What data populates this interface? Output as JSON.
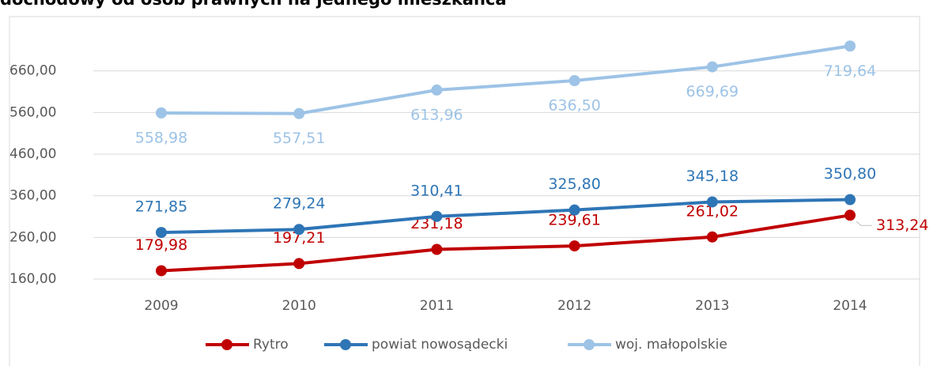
{
  "chart_data": {
    "type": "line",
    "title": "dochodowy od osób prawnych na jednego mieszkańca",
    "categories": [
      "2009",
      "2010",
      "2011",
      "2012",
      "2013",
      "2014"
    ],
    "series": [
      {
        "name": "Rytro",
        "color": "#c00000",
        "label_pos": "above",
        "values": [
          179.98,
          197.21,
          231.18,
          239.61,
          261.02,
          313.24
        ],
        "value_labels": [
          "179,98",
          "197,21",
          "231,18",
          "239,61",
          "261,02",
          "313,24"
        ]
      },
      {
        "name": "powiat nowosądecki",
        "color": "#2e75b6",
        "label_pos": "above",
        "values": [
          271.85,
          279.24,
          310.41,
          325.8,
          345.18,
          350.8
        ],
        "value_labels": [
          "271,85",
          "279,24",
          "310,41",
          "325,80",
          "345,18",
          "350,80"
        ]
      },
      {
        "name": "woj. małopolskie",
        "color": "#9dc3e6",
        "label_pos": "below",
        "values": [
          558.98,
          557.51,
          613.96,
          636.5,
          669.69,
          719.64
        ],
        "value_labels": [
          "558,98",
          "557,51",
          "613,96",
          "636,50",
          "669,69",
          "719,64"
        ]
      }
    ],
    "ylim": [
      160,
      760
    ],
    "yticks": [
      {
        "value": 160,
        "label": "160,00"
      },
      {
        "value": 260,
        "label": "260,00"
      },
      {
        "value": 360,
        "label": "360,00"
      },
      {
        "value": 460,
        "label": "460,00"
      },
      {
        "value": 560,
        "label": "560,00"
      },
      {
        "value": 660,
        "label": "660,00"
      }
    ],
    "grid": true,
    "legend": "bottom"
  }
}
